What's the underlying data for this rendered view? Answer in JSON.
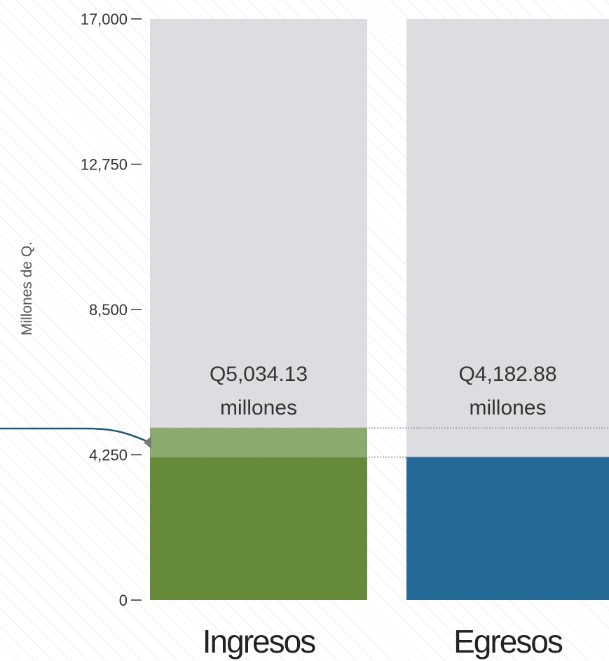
{
  "chart_data": {
    "type": "bar",
    "ylabel": "Millones de Q.",
    "ylim": [
      0,
      17000
    ],
    "yticks": [
      0,
      4250,
      8500,
      12750,
      17000
    ],
    "ytick_labels": [
      "0",
      "4,250",
      "8,500",
      "12,750",
      "17,000"
    ],
    "categories": [
      "Ingresos",
      "Egresos"
    ],
    "values": [
      5034.13,
      4182.88
    ],
    "value_labels": [
      {
        "amount": "Q5,034.13",
        "unit": "millones"
      },
      {
        "amount": "Q4,182.88",
        "unit": "millones"
      }
    ],
    "grid": false,
    "colors": {
      "background_bar": "#dcdde0",
      "ingresos": "#658b3a",
      "egresos": "#236b96",
      "difference_band": "#8bab6e",
      "pointer_line": "#1d5a74",
      "pointer_marker": "#777777",
      "axis": "#333333",
      "dotted_line": "#999999"
    }
  }
}
